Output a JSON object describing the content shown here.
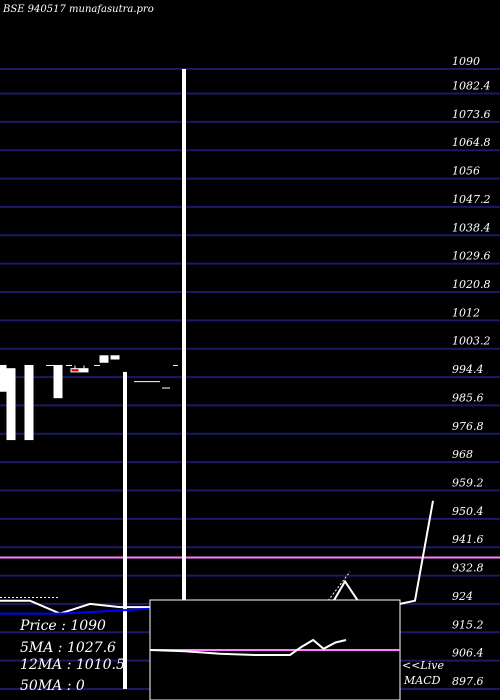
{
  "chart_data": {
    "type": "candlestick",
    "title": "BSE 940517 munafasutra.pro",
    "y_ticks": [
      1090,
      1082.4,
      1073.6,
      1064.8,
      1056,
      1047.2,
      1038.4,
      1029.6,
      1020.8,
      1012,
      1003.2,
      994.4,
      985.6,
      976.8,
      968,
      959.2,
      950.4,
      941.6,
      932.8,
      924,
      915.2,
      906.4,
      897.6
    ],
    "ylim": [
      897.6,
      1090
    ],
    "grid": true,
    "candles": [
      {
        "x": 2,
        "open": 998,
        "close": 990,
        "high": 998,
        "low": 990
      },
      {
        "x": 11,
        "open": 997,
        "close": 975,
        "high": 997,
        "low": 975
      },
      {
        "x": 29,
        "open": 998,
        "close": 975,
        "high": 998,
        "low": 975
      },
      {
        "x": 58,
        "open": 998,
        "close": 988,
        "high": 998,
        "low": 988
      },
      {
        "x": 75,
        "open": 997,
        "close": 996,
        "high": 998,
        "low": 996
      },
      {
        "x": 84,
        "open": 997,
        "close": 996,
        "high": 998,
        "low": 996
      },
      {
        "x": 104,
        "open": 1001,
        "close": 999,
        "high": 1001,
        "low": 999
      },
      {
        "x": 115,
        "open": 1001,
        "close": 1000,
        "high": 1001,
        "low": 1000
      }
    ],
    "spikes": [
      {
        "x": 125,
        "high": 996,
        "low": 897.6
      },
      {
        "x": 184,
        "high": 1090,
        "low": 924
      }
    ],
    "ma_lines": [
      {
        "name": "5MA",
        "color": "#ffffff",
        "points": [
          [
            0,
            925
          ],
          [
            30,
            925
          ],
          [
            60,
            921
          ],
          [
            90,
            924
          ],
          [
            120,
            923
          ],
          [
            150,
            923
          ],
          [
            180,
            924
          ],
          [
            210,
            924
          ],
          [
            240,
            924
          ],
          [
            270,
            924
          ],
          [
            300,
            923
          ],
          [
            330,
            923
          ],
          [
            345,
            931
          ],
          [
            360,
            924
          ],
          [
            400,
            924
          ],
          [
            415,
            925
          ],
          [
            433,
            956
          ]
        ]
      },
      {
        "name": "12MA",
        "color": "#0000ff",
        "points": [
          [
            0,
            921
          ],
          [
            60,
            921
          ],
          [
            120,
            922
          ],
          [
            180,
            923
          ],
          [
            240,
            923
          ],
          [
            300,
            923
          ],
          [
            330,
            923
          ]
        ]
      }
    ],
    "pink_line": {
      "value": 938.4,
      "color": "#ff80ff"
    },
    "colors": {
      "grid": "#1a1a66",
      "up": "#ffffff",
      "down": "#cc0000",
      "macd_line": "#ff80ff"
    },
    "legend": [
      {
        "label": "Price",
        "sep": ":",
        "value": "1090"
      },
      {
        "label": "5MA",
        "sep": ":",
        "value": "1027.6"
      },
      {
        "label": "12MA",
        "sep": ":",
        "value": "1010.5"
      },
      {
        "label": "50MA",
        "sep": ":",
        "value": "0"
      }
    ],
    "macd": {
      "label_line1": "<<Live",
      "label_line2": "MACD",
      "line": [
        [
          0,
          0.2
        ],
        [
          50,
          0.15
        ],
        [
          100,
          0.05
        ],
        [
          150,
          0.0
        ],
        [
          200,
          0.0
        ],
        [
          215,
          0.3
        ],
        [
          233,
          0.6
        ],
        [
          248,
          0.25
        ],
        [
          265,
          0.5
        ],
        [
          280,
          0.6
        ]
      ]
    }
  }
}
